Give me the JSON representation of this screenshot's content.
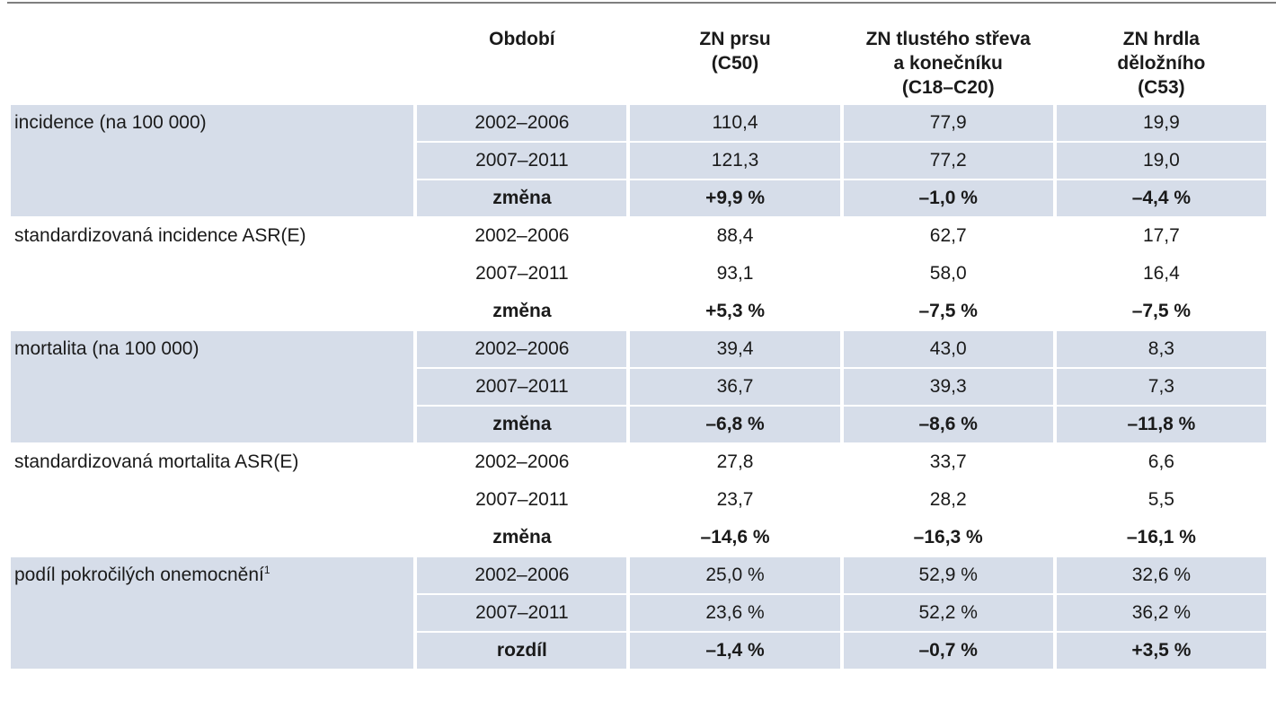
{
  "header": {
    "col_label": "",
    "col_period": "Období",
    "col_v1": [
      "ZN prsu",
      "(C50)"
    ],
    "col_v2": [
      "ZN tlustého střeva",
      "a konečníku",
      "(C18–C20)"
    ],
    "col_v3": [
      "ZN hrdla",
      "děložního",
      "(C53)"
    ]
  },
  "groups": [
    {
      "label": "incidence (na 100 000)",
      "sup": "",
      "shaded": true,
      "rows": [
        {
          "period": "2002–2006",
          "v1": "110,4",
          "v2": "77,9",
          "v3": "19,9"
        },
        {
          "period": "2007–2011",
          "v1": "121,3",
          "v2": "77,2",
          "v3": "19,0"
        },
        {
          "period": "změna",
          "v1": "+9,9 %",
          "v2": "–1,0 %",
          "v3": "–4,4 %"
        }
      ]
    },
    {
      "label": "standardizovaná incidence ASR(E)",
      "sup": "",
      "shaded": false,
      "rows": [
        {
          "period": "2002–2006",
          "v1": "88,4",
          "v2": "62,7",
          "v3": "17,7"
        },
        {
          "period": "2007–2011",
          "v1": "93,1",
          "v2": "58,0",
          "v3": "16,4"
        },
        {
          "period": "změna",
          "v1": "+5,3 %",
          "v2": "–7,5 %",
          "v3": "–7,5 %"
        }
      ]
    },
    {
      "label": "mortalita (na 100 000)",
      "sup": "",
      "shaded": true,
      "rows": [
        {
          "period": "2002–2006",
          "v1": "39,4",
          "v2": "43,0",
          "v3": "8,3"
        },
        {
          "period": "2007–2011",
          "v1": "36,7",
          "v2": "39,3",
          "v3": "7,3"
        },
        {
          "period": "změna",
          "v1": "–6,8 %",
          "v2": "–8,6 %",
          "v3": "–11,8 %"
        }
      ]
    },
    {
      "label": "standardizovaná mortalita ASR(E)",
      "sup": "",
      "shaded": false,
      "rows": [
        {
          "period": "2002–2006",
          "v1": "27,8",
          "v2": "33,7",
          "v3": "6,6"
        },
        {
          "period": "2007–2011",
          "v1": "23,7",
          "v2": "28,2",
          "v3": "5,5"
        },
        {
          "period": "změna",
          "v1": "–14,6 %",
          "v2": "–16,3 %",
          "v3": "–16,1 %"
        }
      ]
    },
    {
      "label": "podíl pokročilých onemocnění",
      "sup": "1",
      "shaded": true,
      "rows": [
        {
          "period": "2002–2006",
          "v1": "25,0 %",
          "v2": "52,9 %",
          "v3": "32,6 %"
        },
        {
          "period": "2007–2011",
          "v1": "23,6 %",
          "v2": "52,2 %",
          "v3": "36,2 %"
        },
        {
          "period": "rozdíl",
          "v1": "–1,4 %",
          "v2": "–0,7 %",
          "v3": "+3,5 %"
        }
      ]
    }
  ],
  "colors": {
    "shade": "#d6dde9",
    "rule": "#7f7f7f",
    "text": "#1a1a1a"
  }
}
